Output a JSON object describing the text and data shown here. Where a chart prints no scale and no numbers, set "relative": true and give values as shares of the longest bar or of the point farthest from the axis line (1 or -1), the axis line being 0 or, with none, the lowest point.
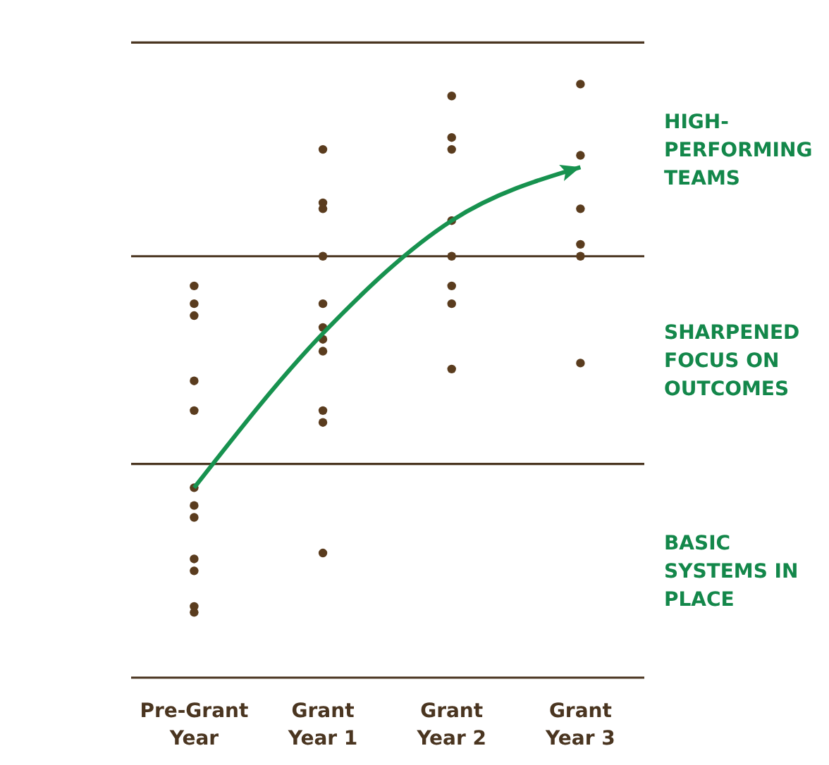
{
  "chart_data": {
    "type": "scatter",
    "relative": true,
    "categories": [
      "Pre-Grant Year",
      "Grant Year 1",
      "Grant Year 2",
      "Grant Year 3"
    ],
    "series": [
      {
        "color": "#5a3c1e",
        "marker": "circle",
        "x": [
          "Pre-Grant Year",
          "Pre-Grant Year",
          "Pre-Grant Year",
          "Pre-Grant Year",
          "Pre-Grant Year",
          "Pre-Grant Year",
          "Pre-Grant Year",
          "Pre-Grant Year",
          "Pre-Grant Year",
          "Pre-Grant Year",
          "Pre-Grant Year",
          "Pre-Grant Year",
          "Grant Year 1",
          "Grant Year 1",
          "Grant Year 1",
          "Grant Year 1",
          "Grant Year 1",
          "Grant Year 1",
          "Grant Year 1",
          "Grant Year 1",
          "Grant Year 1",
          "Grant Year 1",
          "Grant Year 1",
          "Grant Year 2",
          "Grant Year 2",
          "Grant Year 2",
          "Grant Year 2",
          "Grant Year 2",
          "Grant Year 2",
          "Grant Year 2",
          "Grant Year 2",
          "Grant Year 3",
          "Grant Year 3",
          "Grant Year 3",
          "Grant Year 3",
          "Grant Year 3",
          "Grant Year 3"
        ],
        "values": [
          0.66,
          0.63,
          0.61,
          0.5,
          0.45,
          0.32,
          0.29,
          0.27,
          0.2,
          0.18,
          0.12,
          0.11,
          0.89,
          0.8,
          0.79,
          0.71,
          0.63,
          0.59,
          0.57,
          0.55,
          0.45,
          0.43,
          0.21,
          0.98,
          0.91,
          0.89,
          0.77,
          0.71,
          0.66,
          0.63,
          0.52,
          1,
          0.88,
          0.79,
          0.73,
          0.71,
          0.53
        ]
      },
      {
        "type": "line",
        "color": "#17924f",
        "marker": "none",
        "line_style": "solid",
        "values": [
          0.32,
          0.58,
          0.77,
          0.86
        ]
      }
    ],
    "ref_lines": [
      {
        "axis": "y",
        "value": 0,
        "color": "#4a3520"
      },
      {
        "axis": "y",
        "value": 0.36,
        "color": "#4a3520"
      },
      {
        "axis": "y",
        "value": 0.71,
        "color": "#4a3520"
      },
      {
        "axis": "y",
        "value": 1.07,
        "color": "#4a3520"
      }
    ],
    "annotations": [
      "HIGH-PERFORMING TEAMS",
      "SHARPENED FOCUS ON OUTCOMES",
      "BASIC SYSTEMS IN PLACE"
    ]
  }
}
